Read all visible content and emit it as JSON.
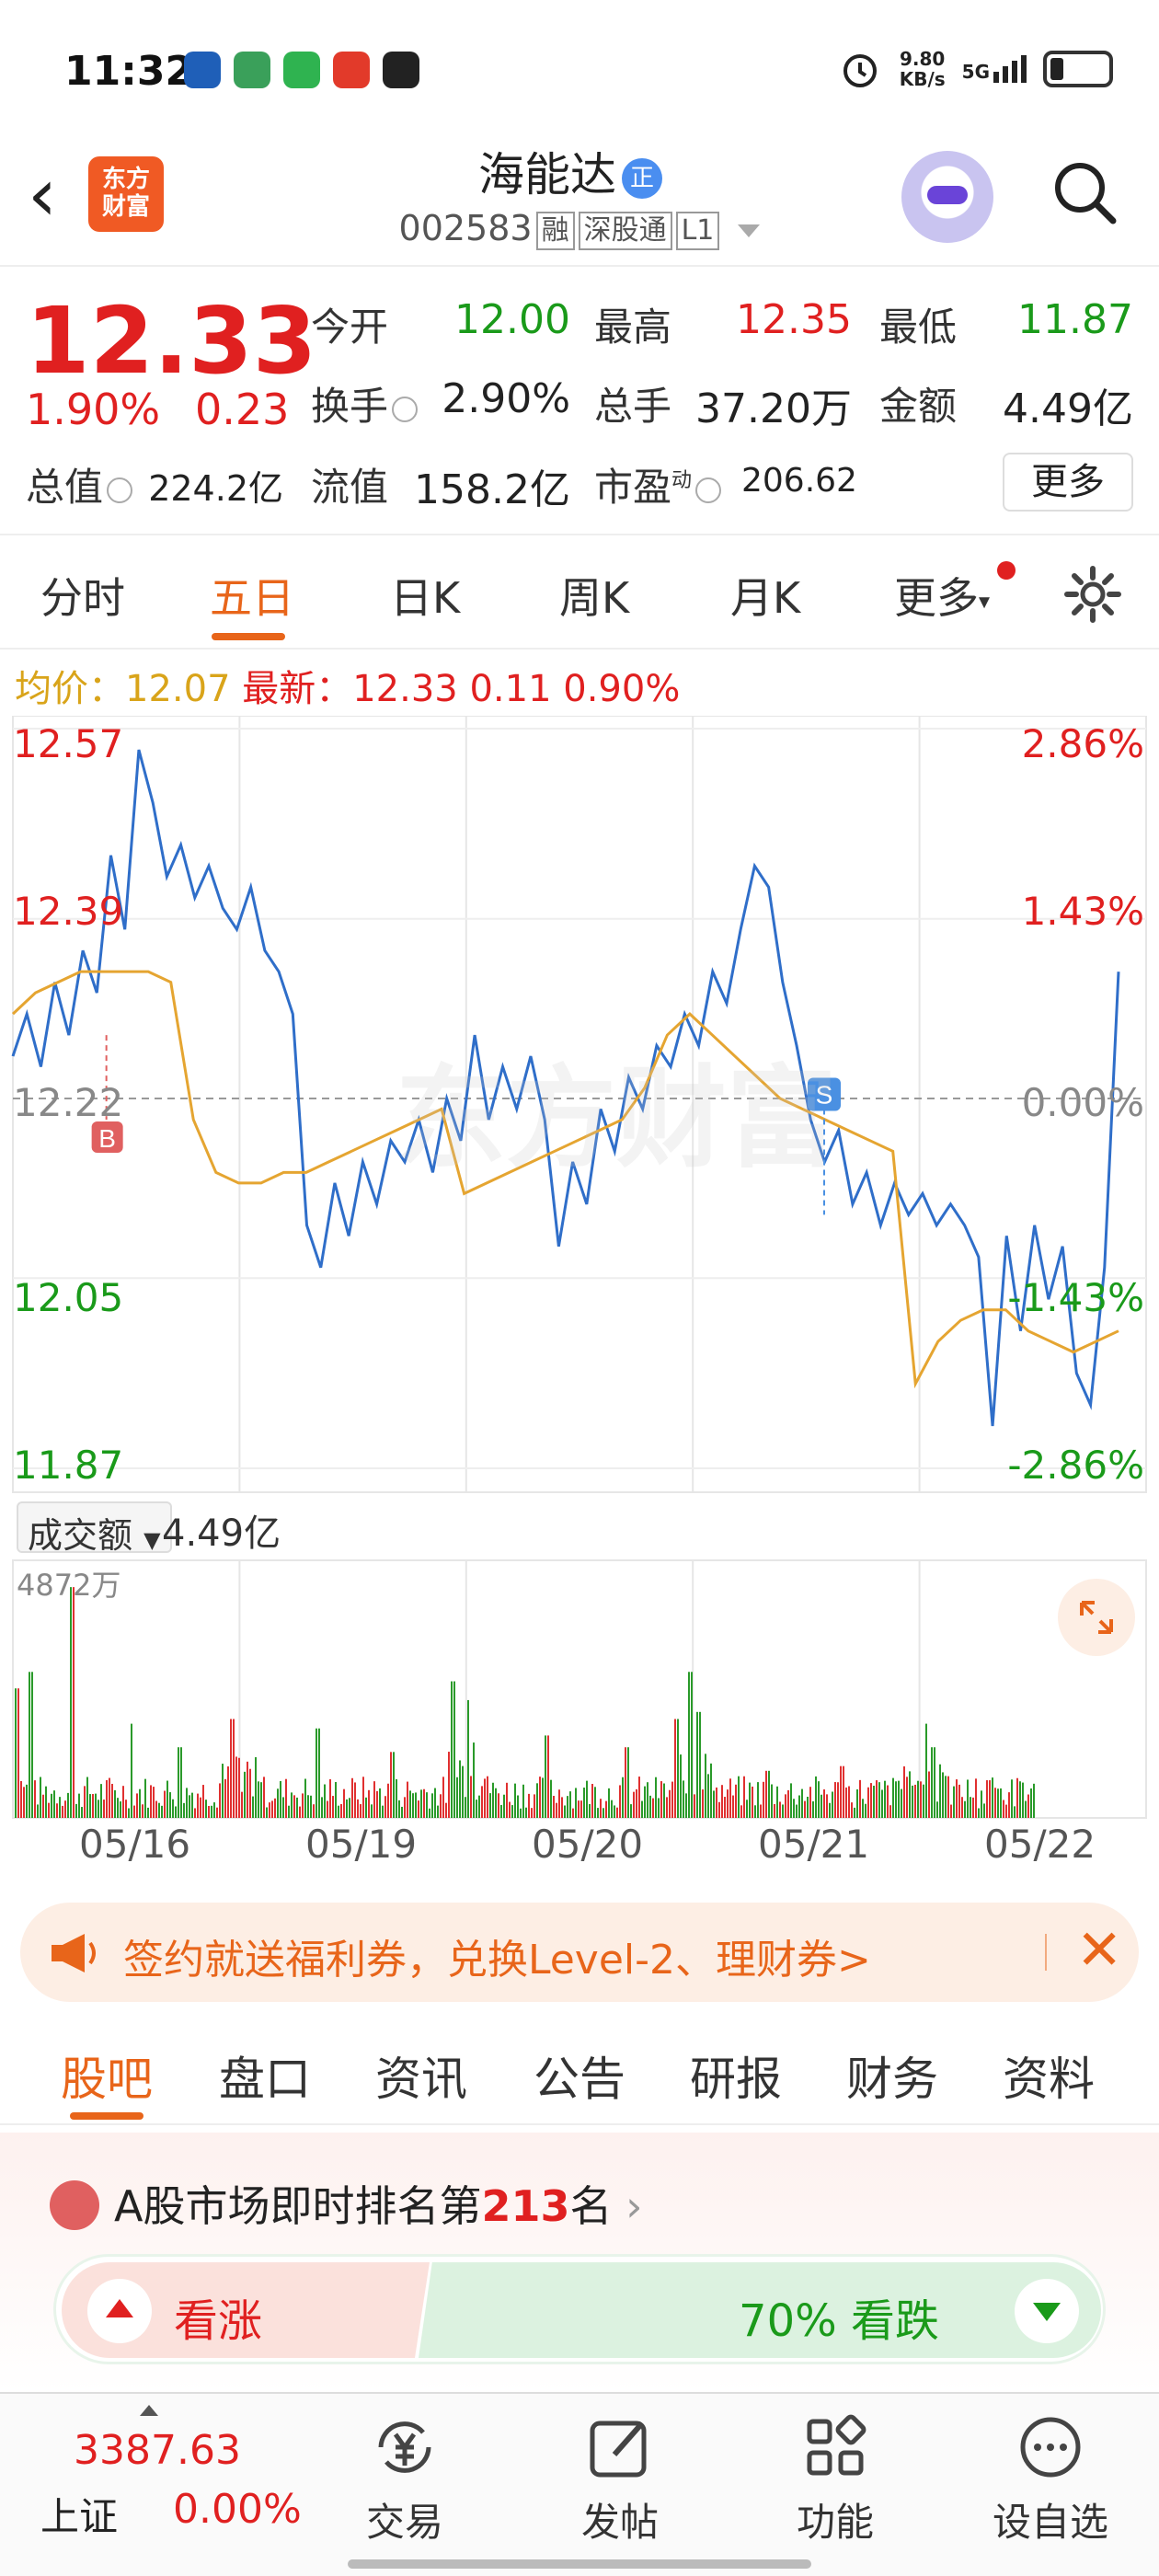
{
  "status_bar": {
    "time": "11:32",
    "net_speed": "9.80",
    "net_unit": "KB/s",
    "network": "5G"
  },
  "header": {
    "back_icon": "chevron-left-icon",
    "logo_text": "东方\n财富",
    "stock_name": "海能达",
    "name_badge": "正",
    "stock_code": "002583",
    "tags": [
      "融",
      "深股通",
      "L1"
    ]
  },
  "quote": {
    "price": "12.33",
    "change_pct": "1.90%",
    "change": "0.23",
    "fields": [
      {
        "label": "今开",
        "value": "12.00",
        "color": "green"
      },
      {
        "label": "最高",
        "value": "12.35",
        "color": "red"
      },
      {
        "label": "最低",
        "value": "11.87",
        "color": "green"
      },
      {
        "label": "换手",
        "value": "2.90%",
        "color": "black"
      },
      {
        "label": "总手",
        "value": "37.20万",
        "color": "black"
      },
      {
        "label": "金额",
        "value": "4.49亿",
        "color": "black"
      },
      {
        "label": "总值",
        "value": "224.2亿",
        "color": "black"
      },
      {
        "label": "流值",
        "value": "158.2亿",
        "color": "black"
      },
      {
        "label": "市盈",
        "sup": "动",
        "value": "206.62",
        "color": "black"
      }
    ],
    "more_label": "更多"
  },
  "tabs": [
    "分时",
    "五日",
    "日K",
    "周K",
    "月K",
    "更多"
  ],
  "active_tab": "五日",
  "avg_bar": {
    "avg_label": "均价：",
    "avg_value": "12.07",
    "latest_label": "最新：",
    "latest_value": "12.33",
    "change": "0.11",
    "change_pct": "0.90%"
  },
  "chart_data": {
    "type": "line",
    "title": "",
    "x_labels": [
      "05/16",
      "05/19",
      "05/20",
      "05/21",
      "05/22"
    ],
    "y_left_ticks": [
      "12.57",
      "12.39",
      "12.22",
      "12.05",
      "11.87"
    ],
    "y_right_ticks": [
      "2.86%",
      "1.43%",
      "0.00%",
      "-1.43%",
      "-2.86%"
    ],
    "ylim": [
      11.87,
      12.57
    ],
    "base_price": 12.22,
    "series": [
      {
        "name": "",
        "values": [
          12.26,
          12.3,
          12.25,
          12.33,
          12.28,
          12.36,
          12.32,
          12.45,
          12.38,
          12.55,
          12.5,
          12.43,
          12.46,
          12.41,
          12.44,
          12.4,
          12.38,
          12.42,
          12.36,
          12.34,
          12.3,
          12.1,
          12.06,
          12.14,
          12.09,
          12.16,
          12.12,
          12.18,
          12.16,
          12.2,
          12.15,
          12.22,
          12.18,
          12.28,
          12.2,
          12.25,
          12.21,
          12.26,
          12.2,
          12.08,
          12.16,
          12.12,
          12.21,
          12.17,
          12.24,
          12.21,
          12.27,
          12.25,
          12.3,
          12.27,
          12.34,
          12.31,
          12.38,
          12.44,
          12.42,
          12.33,
          12.27,
          12.2,
          12.16,
          12.19,
          12.12,
          12.15,
          12.1,
          12.14,
          12.11,
          12.13,
          12.1,
          12.12,
          12.1,
          12.07,
          11.91,
          12.09,
          12.0,
          12.1,
          12.03,
          12.08,
          11.96,
          11.93,
          12.06,
          12.34
        ],
        "color": "#2f6ec9"
      },
      {
        "name": "",
        "values": [
          12.3,
          12.32,
          12.33,
          12.34,
          12.34,
          12.34,
          12.34,
          12.33,
          12.2,
          12.15,
          12.14,
          12.14,
          12.15,
          12.15,
          12.16,
          12.17,
          12.18,
          12.19,
          12.2,
          12.21,
          12.13,
          12.14,
          12.15,
          12.16,
          12.17,
          12.18,
          12.19,
          12.2,
          12.23,
          12.28,
          12.3,
          12.28,
          12.26,
          12.24,
          12.22,
          12.21,
          12.2,
          12.19,
          12.18,
          12.17,
          11.95,
          11.99,
          12.01,
          12.02,
          12.02,
          12.0,
          11.99,
          11.98,
          11.99,
          12.0
        ],
        "color": "#e5a531"
      }
    ],
    "markers": [
      {
        "label": "B",
        "color": "#e06060"
      },
      {
        "label": "S",
        "color": "#4a90e2"
      }
    ],
    "volume": {
      "label": "成交额",
      "total": "4.49亿",
      "max_label": "4872万"
    },
    "watermark": "东方财富"
  },
  "promo": {
    "text": "签约就送福利券，兑换Level-2、理财券>",
    "icon": "megaphone-icon",
    "close_icon": "close-icon"
  },
  "sub_tabs": [
    "股吧",
    "盘口",
    "资讯",
    "公告",
    "研报",
    "财务",
    "资料"
  ],
  "active_sub_tab": "股吧",
  "ranking": {
    "prefix": "A股市场即时排名第",
    "rank": "213",
    "suffix": "名",
    "bull_label": "看涨",
    "bear_label": "70% 看跌"
  },
  "bottom_nav": {
    "index_value": "3387.63",
    "index_name": "上证",
    "index_change": "0.00%",
    "items": [
      {
        "label": "交易",
        "icon": "yen-exchange-icon"
      },
      {
        "label": "发帖",
        "icon": "edit-icon"
      },
      {
        "label": "功能",
        "icon": "grid-icon"
      },
      {
        "label": "设自选",
        "icon": "more-dots-icon"
      }
    ]
  }
}
